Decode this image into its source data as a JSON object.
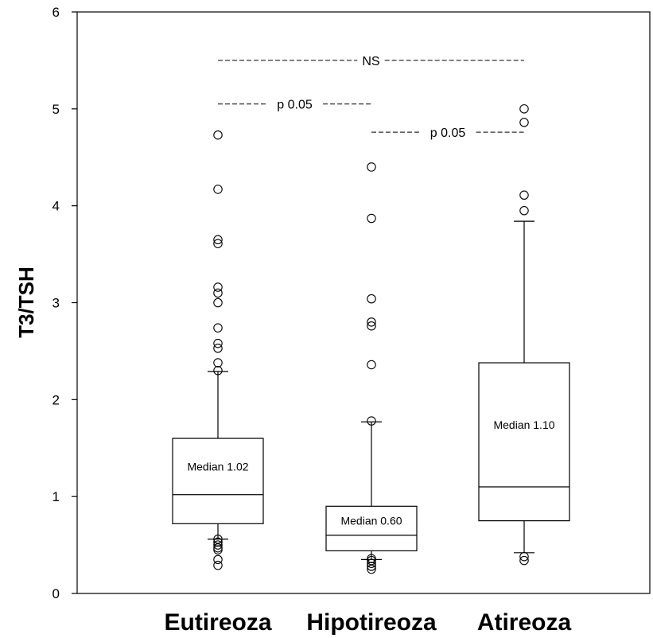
{
  "chart_data": {
    "type": "box",
    "ylabel": "T3/TSH",
    "ylim": [
      0,
      6
    ],
    "yticks": [
      "0",
      "1",
      "2",
      "3",
      "4",
      "5",
      "6"
    ],
    "categories": [
      "Eutireoza",
      "Hipotireoza",
      "Atireoza"
    ],
    "boxes": [
      {
        "category": "Eutireoza",
        "q1": 0.72,
        "median": 1.02,
        "q3": 1.6,
        "whisker_low": 0.56,
        "whisker_high": 2.29,
        "outliers": [
          4.73,
          4.17,
          3.65,
          3.61,
          3.16,
          3.1,
          3.0,
          2.74,
          2.58,
          2.53,
          2.38,
          2.3,
          0.56,
          0.53,
          0.5,
          0.47,
          0.45,
          0.35,
          0.29
        ],
        "median_label": "Median 1.02"
      },
      {
        "category": "Hipotireoza",
        "q1": 0.44,
        "median": 0.6,
        "q3": 0.9,
        "whisker_low": 0.35,
        "whisker_high": 1.77,
        "outliers": [
          4.4,
          3.87,
          3.04,
          2.8,
          2.76,
          2.36,
          1.78,
          0.36,
          0.34,
          0.31,
          0.28,
          0.25
        ],
        "median_label": "Median 0.60"
      },
      {
        "category": "Atireoza",
        "q1": 0.75,
        "median": 1.1,
        "q3": 2.38,
        "whisker_low": 0.42,
        "whisker_high": 3.84,
        "outliers": [
          5.0,
          4.86,
          4.11,
          3.95,
          0.38,
          0.34
        ],
        "median_label": "Median 1.10"
      }
    ],
    "annotations": [
      {
        "label": "NS",
        "from": "Eutireoza",
        "to": "Atireoza",
        "y": 5.5
      },
      {
        "label": "p 0.05",
        "from": "Eutireoza",
        "to": "Hipotireoza",
        "y": 5.05
      },
      {
        "label": "p 0.05",
        "from": "Hipotireoza",
        "to": "Atireoza",
        "y": 4.76
      }
    ]
  }
}
